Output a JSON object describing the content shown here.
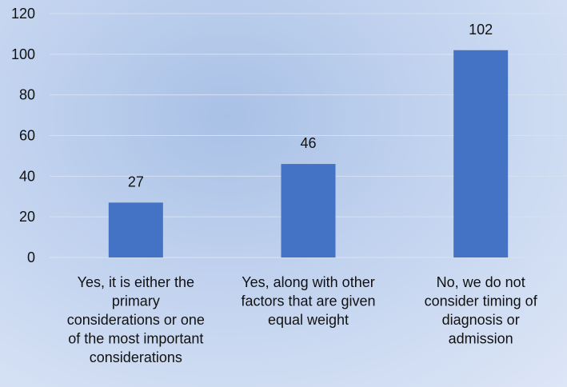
{
  "chart_data": {
    "type": "bar",
    "categories": [
      "Yes, it is either the primary considerations or one of the most important considerations",
      "Yes, along with other factors that are given equal weight",
      "No, we do not consider timing of diagnosis or admission"
    ],
    "category_lines": [
      [
        "Yes, it is either the",
        "primary",
        "considerations or one",
        "of the most important",
        "considerations"
      ],
      [
        "Yes, along with other",
        "factors that are given",
        "equal weight"
      ],
      [
        "No, we do not",
        "consider timing of",
        "diagnosis or",
        "admission"
      ]
    ],
    "values": [
      27,
      46,
      102
    ],
    "ylim": [
      0,
      120
    ],
    "yticks": [
      0,
      20,
      40,
      60,
      80,
      100,
      120
    ],
    "grid": true,
    "bar_color": "#4472c4",
    "title": "",
    "xlabel": "",
    "ylabel": ""
  }
}
